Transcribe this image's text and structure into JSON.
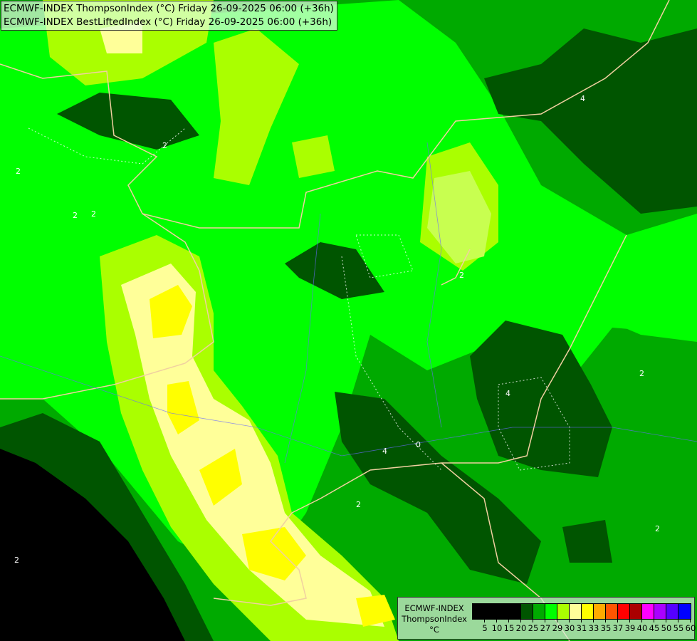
{
  "header": {
    "line1": "ECMWF-INDEX ThompsonIndex (°C) Friday 26-09-2025 06:00 (+36h)",
    "line2": "ECMWF-INDEX BestLiftedIndex (°C) Friday 26-09-2025 06:00 (+36h)"
  },
  "legend": {
    "model": "ECMWF-INDEX",
    "parameter": "ThompsonIndex",
    "unit": "°C",
    "colors": [
      "#000000",
      "#000000",
      "#000000",
      "#000000",
      "#005500",
      "#00aa00",
      "#00ff00",
      "#aaff00",
      "#ffff99",
      "#ffff00",
      "#ffaa00",
      "#ff5500",
      "#ff0000",
      "#aa0000",
      "#ff00ff",
      "#aa00ff",
      "#5500ff",
      "#0000ff"
    ],
    "ticks": [
      "5",
      "10",
      "15",
      "20",
      "25",
      "27",
      "29",
      "30",
      "31",
      "33",
      "35",
      "37",
      "39",
      "40",
      "45",
      "50",
      "55",
      "60"
    ]
  },
  "map": {
    "contour_labels": [
      "2",
      "2",
      "2",
      "2",
      "4",
      "4",
      "0",
      "4",
      "2",
      "2",
      "2",
      "2",
      "2"
    ]
  }
}
